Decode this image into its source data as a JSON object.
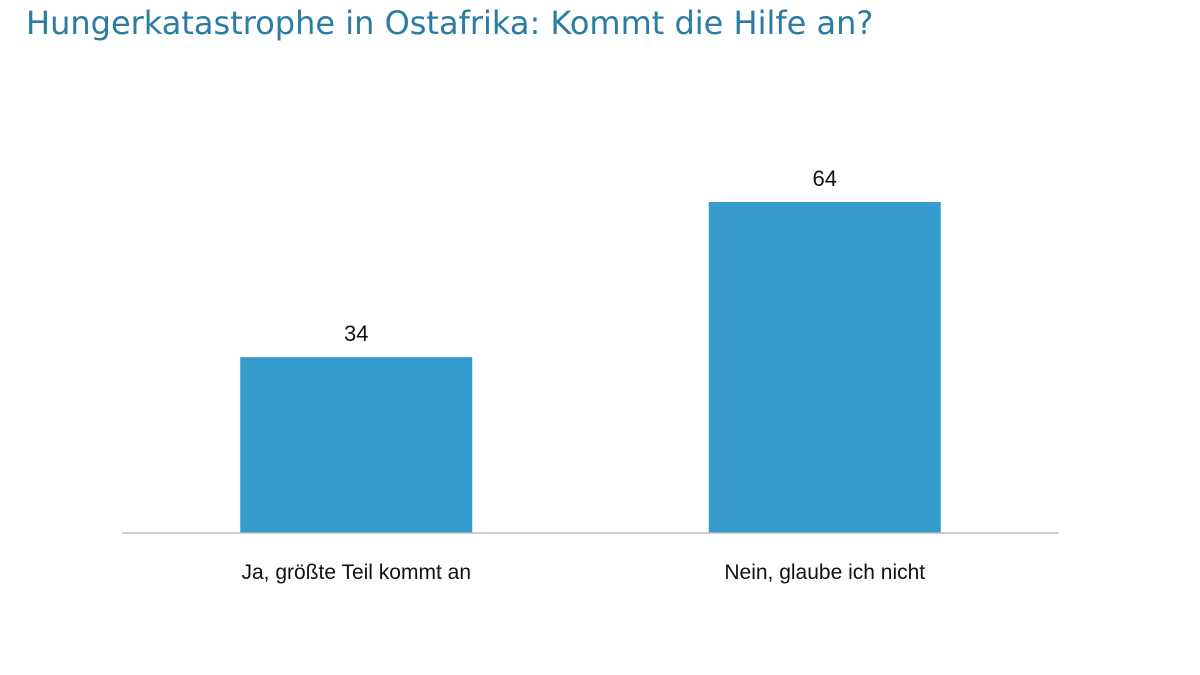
{
  "title": "Hungerkatastrophe in Ostafrika: Kommt die Hilfe an?",
  "colors": {
    "title": "#2a7ca3",
    "bar": "#349bcc",
    "axis": "#bdbdbd"
  },
  "chart_data": {
    "type": "bar",
    "categories": [
      "Ja, größte Teil kommt an",
      "Nein, glaube ich nicht"
    ],
    "values": [
      34,
      64
    ],
    "data_labels": [
      "34",
      "64"
    ],
    "title": "Hungerkatastrophe in Ostafrika: Kommt die Hilfe an?",
    "xlabel": "",
    "ylabel": "",
    "ylim": [
      0,
      100
    ],
    "grid": false,
    "legend": "none"
  }
}
